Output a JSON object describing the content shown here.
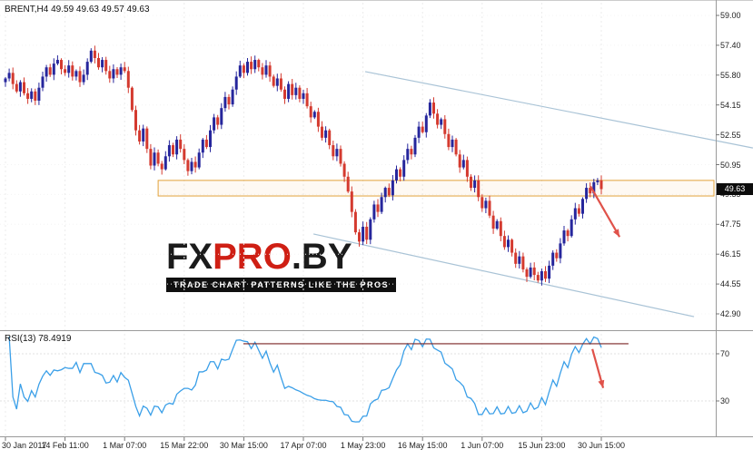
{
  "window": {
    "symbol_info": "BRENT,H4 49.59 49.63 49.57 49.63",
    "price_tag": "49.63"
  },
  "watermark": {
    "logo_fx": "FX",
    "logo_pro": "PRO",
    "logo_suffix": ".BY",
    "tagline": "TRADE CHART PATTERNS LIKE THE PROS",
    "logo_color_primary": "#1b1b1b",
    "logo_color_accent": "#cf1f14",
    "tagline_bg": "#101010"
  },
  "rsi_panel": {
    "label": "RSI(13) 78.4919"
  },
  "axes": {
    "price_labels": [
      "59.00",
      "57.40",
      "55.80",
      "54.15",
      "52.55",
      "50.95",
      "49.35",
      "47.75",
      "46.15",
      "44.55",
      "42.90"
    ],
    "rsi_labels": [
      {
        "text": "70",
        "value": 70
      },
      {
        "text": "30",
        "value": 30
      }
    ],
    "time_ticks": [
      {
        "label": "30 Jan 2017",
        "index": 0
      },
      {
        "label": "14 Feb 11:00",
        "index": 16
      },
      {
        "label": "1 Mar 07:00",
        "index": 32
      },
      {
        "label": "15 Mar 22:00",
        "index": 48
      },
      {
        "label": "30 Mar 15:00",
        "index": 64
      },
      {
        "label": "17 Apr 07:00",
        "index": 80
      },
      {
        "label": "1 May 23:00",
        "index": 96
      },
      {
        "label": "16 May 15:00",
        "index": 112
      },
      {
        "label": "1 Jun 07:00",
        "index": 128
      },
      {
        "label": "15 Jun 23:00",
        "index": 144
      },
      {
        "label": "30 Jun 15:00",
        "index": 160
      }
    ]
  },
  "chart_data": {
    "type": "candlestick",
    "symbol": "BRENT",
    "timeframe": "H4",
    "ohlc_display": "49.59 49.63 49.57 49.63",
    "ylim": [
      42.9,
      59.0
    ],
    "up_color": "#26269c",
    "down_color": "#d43a2f",
    "closes": [
      55.6,
      55.9,
      55.3,
      54.9,
      55.4,
      54.8,
      54.5,
      54.9,
      54.4,
      55.1,
      55.7,
      56.2,
      55.8,
      56.4,
      56.6,
      56.1,
      55.9,
      56.3,
      55.7,
      56.0,
      55.4,
      55.8,
      56.5,
      57.1,
      56.7,
      56.2,
      56.6,
      56.0,
      55.6,
      56.1,
      55.8,
      56.2,
      56.0,
      55.1,
      53.9,
      52.8,
      52.2,
      52.9,
      51.8,
      50.9,
      51.6,
      51.0,
      50.7,
      51.4,
      52.0,
      51.5,
      52.3,
      51.8,
      51.2,
      50.6,
      51.1,
      50.8,
      51.6,
      52.3,
      51.9,
      52.8,
      53.5,
      53.1,
      54.0,
      54.6,
      54.2,
      55.0,
      55.7,
      56.3,
      55.9,
      56.5,
      56.1,
      56.6,
      56.2,
      55.8,
      56.3,
      55.7,
      55.2,
      55.6,
      55.0,
      54.5,
      55.3,
      54.7,
      55.1,
      54.5,
      54.8,
      54.1,
      53.5,
      53.8,
      53.0,
      52.4,
      52.8,
      52.0,
      51.4,
      51.8,
      51.0,
      50.3,
      49.5,
      48.4,
      47.3,
      46.8,
      47.6,
      46.9,
      48.0,
      48.8,
      48.4,
      49.2,
      49.7,
      49.3,
      50.1,
      50.7,
      50.3,
      51.2,
      51.8,
      51.5,
      52.4,
      53.0,
      52.7,
      53.6,
      54.3,
      53.7,
      53.1,
      53.4,
      52.6,
      51.9,
      52.3,
      51.5,
      50.8,
      51.2,
      50.3,
      49.7,
      50.1,
      49.2,
      48.6,
      49.0,
      48.2,
      47.5,
      47.9,
      47.1,
      46.5,
      46.9,
      46.2,
      45.6,
      46.0,
      45.3,
      44.9,
      45.4,
      45.0,
      44.7,
      45.2,
      44.8,
      45.5,
      46.2,
      45.9,
      46.7,
      47.4,
      47.1,
      48.0,
      48.6,
      48.3,
      49.1,
      49.7,
      49.4,
      50.0,
      50.1,
      49.63
    ],
    "annotations": {
      "resistance_zone": {
        "price_from": 49.26,
        "price_to": 50.1,
        "start_index": 41,
        "border_color": "#e2a23b"
      },
      "channel_color": "#a9c3d6",
      "channel_lines": [
        {
          "x1": 96.6,
          "p1": 55.97,
          "x2": 200.7,
          "p2": 51.85
        },
        {
          "x1": 82.7,
          "p1": 47.21,
          "x2": 184.9,
          "p2": 42.75
        }
      ],
      "forecast_arrow": {
        "x1": 157.1,
        "p1": 49.78,
        "x2": 164.9,
        "p2": 47.05,
        "color": "#e0524a"
      }
    },
    "indicator": {
      "name": "RSI",
      "period": 13,
      "current_value": 78.4919,
      "levels": [
        70,
        30
      ],
      "line_color": "#3a9fe8",
      "resistance_line": {
        "value": 78.5,
        "x1": 63.9,
        "x2": 167.3,
        "color": "#7b2525"
      },
      "arrow": {
        "x1": 157.6,
        "v1": 74,
        "x2": 160.5,
        "v2": 41,
        "color": "#e0524a"
      }
    }
  }
}
